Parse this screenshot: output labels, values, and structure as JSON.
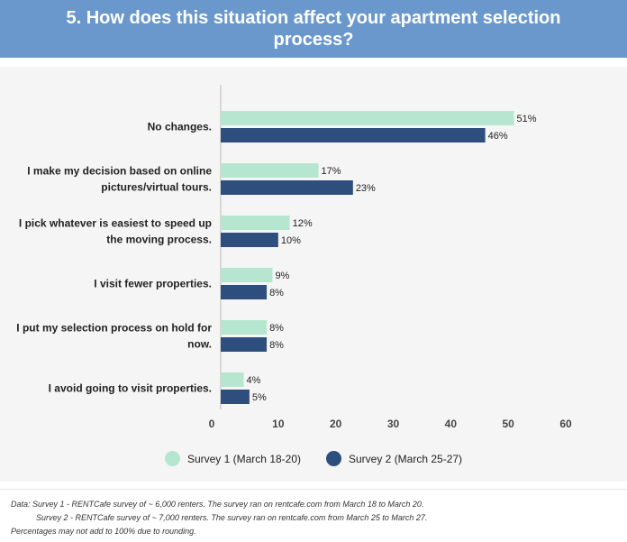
{
  "header": {
    "title": "5. How does this situation affect your apartment selection process?"
  },
  "colors": {
    "header_bg": "#6b98cc",
    "survey1": "#b6e6cf",
    "survey2": "#2e4e7e"
  },
  "chart_data": {
    "type": "bar",
    "orientation": "horizontal",
    "title": "5. How does this situation affect your apartment selection process?",
    "categories": [
      [
        "No changes."
      ],
      [
        "I make my decision based on online",
        "pictures/virtual tours."
      ],
      [
        "I pick whatever is easiest to speed up",
        "the moving process."
      ],
      [
        "I visit fewer properties."
      ],
      [
        "I put my selection process on hold for",
        "now."
      ],
      [
        "I avoid going to visit properties."
      ]
    ],
    "series": [
      {
        "name": "Survey 1 (March 18-20)",
        "color": "#b6e6cf",
        "values": [
          51,
          17,
          12,
          9,
          8,
          4
        ],
        "labels": [
          "51%",
          "17%",
          "12%",
          "9%",
          "8%",
          "4%"
        ]
      },
      {
        "name": "Survey 2 (March 25-27)",
        "color": "#2e4e7e",
        "values": [
          46,
          23,
          10,
          8,
          8,
          5
        ],
        "labels": [
          "46%",
          "23%",
          "10%",
          "8%",
          "8%",
          "5%"
        ]
      }
    ],
    "xlim": [
      0,
      60
    ],
    "xticks": [
      "0",
      "10",
      "20",
      "30",
      "40",
      "50",
      "60"
    ],
    "grid": false,
    "legend_position": "bottom"
  },
  "legend": {
    "survey1": "Survey 1 (March 18-20)",
    "survey2": "Survey 2 (March 25-27)"
  },
  "footer": {
    "line1": "Data: Survey 1 - RENTCafe survey of ~ 6,000 renters. The survey ran on rentcafe.com from March 18 to March 20.",
    "line2": "Survey 2 - RENTCafe survey of ~ 7,000 renters. The survey ran on rentcafe.com from March 25 to March 27.",
    "line3": "Percentages may not add to 100% due to rounding."
  }
}
